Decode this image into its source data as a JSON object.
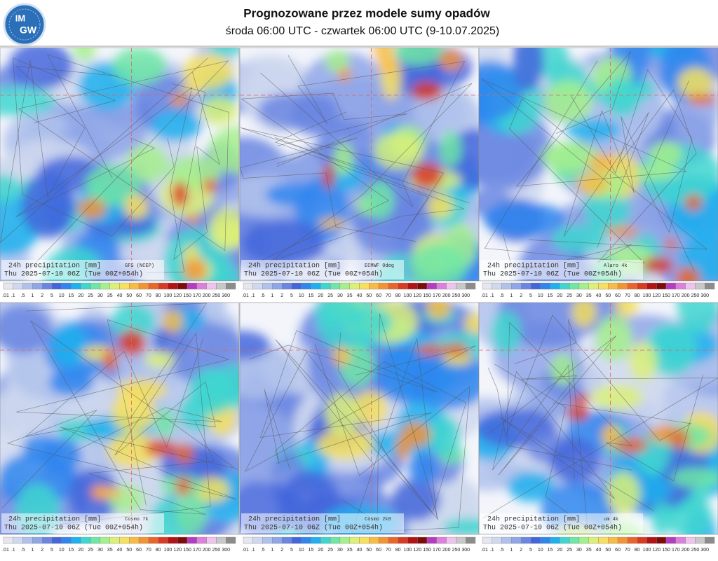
{
  "header": {
    "logo_top": "IM",
    "logo_bottom": "GW",
    "title": "Prognozowane przez modele sumy opadów",
    "subtitle": "środa 06:00 UTC - czwartek 06:00 UTC (9-10.07.2025)"
  },
  "map_label": "24h precipitation  [mm]",
  "valid_time": "Thu 2025-07-10 06Z (Tue 00Z+054h)",
  "panels": [
    {
      "model": "GFS (NCEP)"
    },
    {
      "model": "ECMWF 0deg"
    },
    {
      "model": "Alaro 4k"
    },
    {
      "model": "Cosmo 7k"
    },
    {
      "model": "Cosmo 2k8"
    },
    {
      "model": "um 4k"
    }
  ],
  "colorbar": {
    "labels": [
      ".01",
      ".1",
      ".5",
      "1",
      "2",
      "5",
      "10",
      "15",
      "20",
      "25",
      "30",
      "35",
      "40",
      "50",
      "60",
      "70",
      "80",
      "100",
      "120",
      "150",
      "170",
      "200",
      "250",
      "300"
    ],
    "colors": [
      "#e6e6ee",
      "#cfd8ef",
      "#b0c2ec",
      "#8fa6e8",
      "#6a86e2",
      "#4466dc",
      "#2f86ef",
      "#1fb0ef",
      "#3fd6d0",
      "#6fe6a6",
      "#a6f08c",
      "#dcf078",
      "#f6e05c",
      "#f8bc44",
      "#f29434",
      "#e8662c",
      "#d83a22",
      "#b01414",
      "#7e0a0a",
      "#b43cc0",
      "#dc80dc",
      "#f0c2f0",
      "#c8c8c8",
      "#8c8c8c"
    ]
  }
}
